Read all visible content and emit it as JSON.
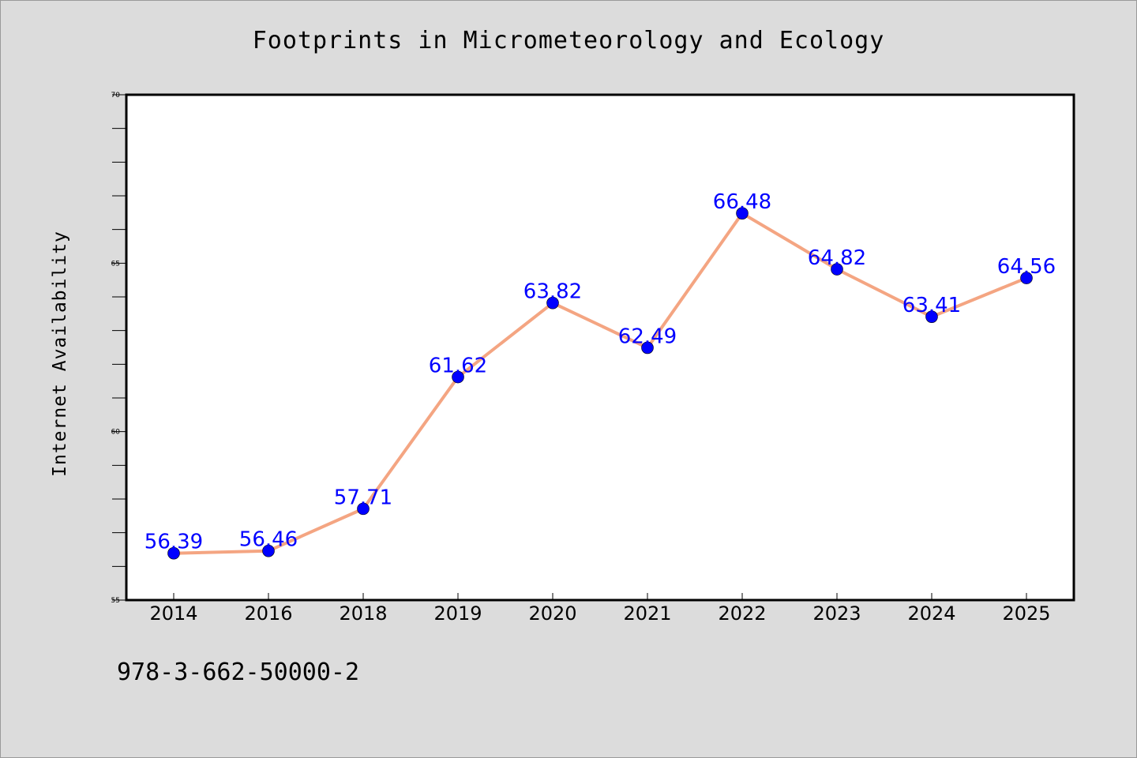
{
  "chart_data": {
    "type": "line",
    "title": "Footprints in Micrometeorology and Ecology",
    "xlabel": "",
    "ylabel": "Internet Availability",
    "categories": [
      "2014",
      "2016",
      "2018",
      "2019",
      "2020",
      "2021",
      "2022",
      "2023",
      "2024",
      "2025"
    ],
    "series": [
      {
        "values": [
          56.39,
          56.46,
          57.71,
          61.62,
          63.82,
          62.49,
          66.48,
          64.82,
          63.41,
          64.56
        ],
        "line_color": "#f4a582",
        "marker_color": "#0000ff"
      }
    ],
    "data_labels": [
      "56.39",
      "56.46",
      "57.71",
      "61.62",
      "63.82",
      "62.49",
      "66.48",
      "64.82",
      "63.41",
      "64.56"
    ],
    "ylim": [
      55,
      70
    ],
    "y_major_ticks": [
      "55",
      "60",
      "65",
      "70"
    ],
    "y_minor_step": 1,
    "grid": false,
    "legend": "none"
  },
  "footer": {
    "isbn": "978-3-662-50000-2"
  },
  "colors": {
    "background": "#dcdcdc",
    "plot_background": "#ffffff",
    "line": "#f4a582",
    "marker": "#0000ff",
    "data_label": "#0000ff"
  }
}
